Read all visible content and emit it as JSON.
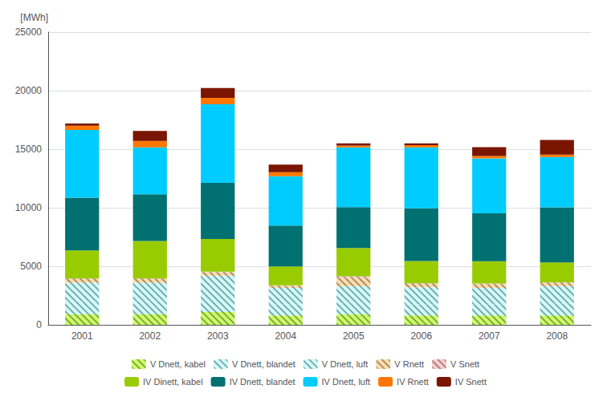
{
  "chart_data": {
    "type": "bar",
    "stacked": true,
    "ylabel": "[MWh]",
    "categories": [
      "2001",
      "2002",
      "2003",
      "2004",
      "2005",
      "2006",
      "2007",
      "2008"
    ],
    "ylim": [
      0,
      25000
    ],
    "yticks": [
      0,
      5000,
      10000,
      15000,
      20000,
      25000
    ],
    "grid": true,
    "legend": "bottom",
    "series": [
      {
        "name": "V Dnett, kabel",
        "color": "#ccff66",
        "marker": "hatched",
        "values": [
          900,
          900,
          1100,
          800,
          900,
          800,
          800,
          800
        ]
      },
      {
        "name": "V Dnett, blandet",
        "color": "#ccffff",
        "marker": "hatched",
        "values": [
          1100,
          1100,
          1300,
          950,
          1000,
          950,
          950,
          1000
        ]
      },
      {
        "name": "V Dnett, luft",
        "color": "#ccffff",
        "marker": "hatched",
        "values": [
          1600,
          1600,
          1800,
          1400,
          1400,
          1450,
          1400,
          1500
        ]
      },
      {
        "name": "V Rnett",
        "color": "#ffddaa",
        "marker": "hatched",
        "values": [
          300,
          300,
          280,
          180,
          700,
          300,
          320,
          280
        ]
      },
      {
        "name": "V Snett",
        "color": "#ffcccc",
        "marker": "hatched",
        "values": [
          50,
          50,
          50,
          50,
          150,
          50,
          50,
          50
        ]
      },
      {
        "name": "IV Dinett, kabel",
        "color": "#99cc00",
        "values": [
          2400,
          3200,
          2800,
          1600,
          2400,
          1900,
          1900,
          1700
        ]
      },
      {
        "name": "IV Dnett, blandet",
        "color": "#007070",
        "values": [
          4500,
          4000,
          4800,
          3500,
          3500,
          4500,
          4100,
          4700
        ]
      },
      {
        "name": "IV Dnett, luft",
        "color": "#00ccff",
        "values": [
          5800,
          4000,
          6700,
          4200,
          5100,
          5200,
          4700,
          4300
        ]
      },
      {
        "name": "IV Rnett",
        "color": "#ff7700",
        "values": [
          350,
          550,
          550,
          350,
          150,
          200,
          200,
          200
        ]
      },
      {
        "name": "IV Snett",
        "color": "#7a1500",
        "values": [
          200,
          850,
          850,
          650,
          200,
          150,
          750,
          1250
        ]
      }
    ]
  }
}
